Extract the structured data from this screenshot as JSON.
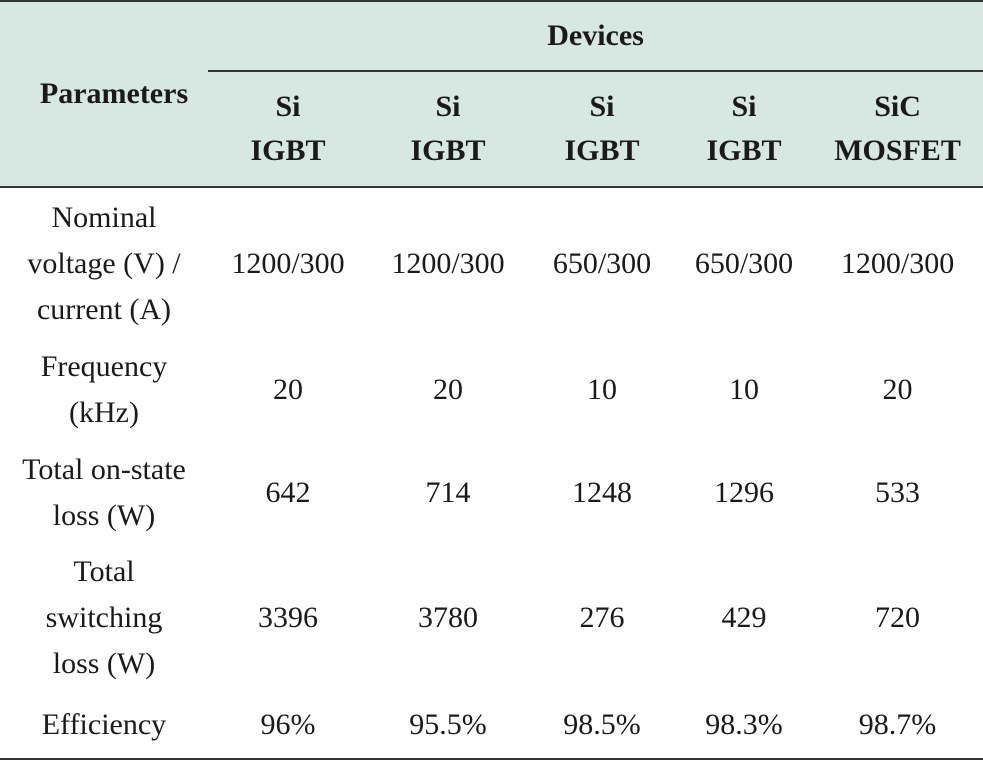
{
  "table": {
    "param_header": "Parameters",
    "group_header": "Devices",
    "devices": [
      {
        "line1": "Si",
        "line2": "IGBT"
      },
      {
        "line1": "Si",
        "line2": "IGBT"
      },
      {
        "line1": "Si",
        "line2": "IGBT"
      },
      {
        "line1": "Si",
        "line2": "IGBT"
      },
      {
        "line1": "SiC",
        "line2": "MOSFET"
      }
    ],
    "rows": [
      {
        "label": [
          "Nominal",
          "voltage (V) /",
          "current (A)"
        ],
        "values": [
          "1200/300",
          "1200/300",
          "650/300",
          "650/300",
          "1200/300"
        ]
      },
      {
        "label": [
          "Frequency",
          "(kHz)"
        ],
        "values": [
          "20",
          "20",
          "10",
          "10",
          "20"
        ]
      },
      {
        "label": [
          "Total on-state",
          "loss (W)"
        ],
        "values": [
          "642",
          "714",
          "1248",
          "1296",
          "533"
        ]
      },
      {
        "label": [
          "Total",
          "switching",
          "loss (W)"
        ],
        "values": [
          "3396",
          "3780",
          "276",
          "429",
          "720"
        ]
      },
      {
        "label": [
          "Efficiency"
        ],
        "values": [
          "96%",
          "95.5%",
          "98.5%",
          "98.3%",
          "98.7%"
        ]
      }
    ]
  },
  "colors": {
    "header_bg": "#d7e7e2",
    "rule": "#333333"
  }
}
